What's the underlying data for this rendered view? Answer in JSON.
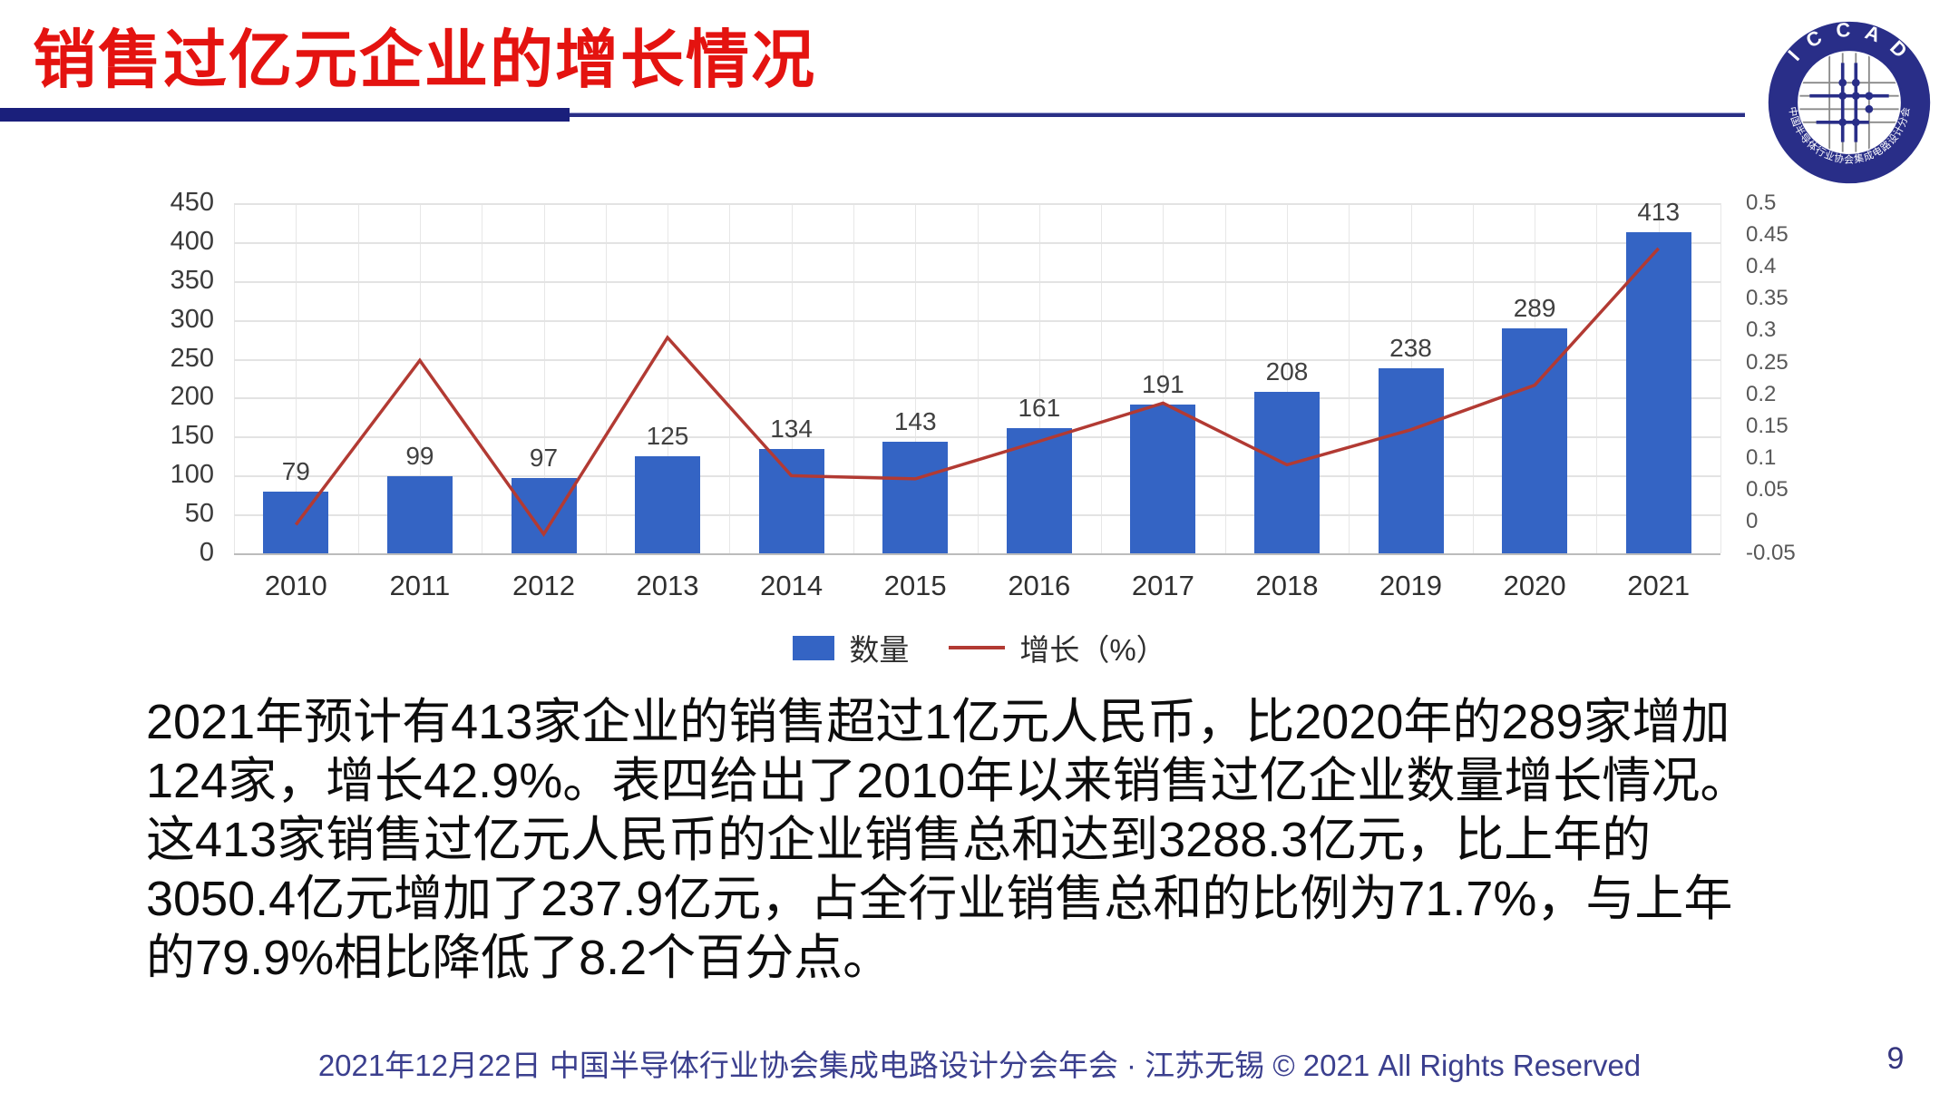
{
  "header": {
    "title": "销售过亿元企业的增长情况"
  },
  "logo": {
    "top_text": "I C C A D",
    "bottom_text": "中国半导体行业协会集成电路设计分会",
    "ring_color": "#292e88"
  },
  "chart_data": {
    "type": "bar",
    "subtype": "combo-bar-line",
    "categories": [
      "2010",
      "2011",
      "2012",
      "2013",
      "2014",
      "2015",
      "2016",
      "2017",
      "2018",
      "2019",
      "2020",
      "2021"
    ],
    "series": [
      {
        "name": "数量",
        "type": "bar",
        "color": "#3464c4",
        "values": [
          79,
          99,
          97,
          125,
          134,
          143,
          161,
          191,
          208,
          238,
          289,
          413
        ]
      },
      {
        "name": "增长（%）",
        "type": "line",
        "color": "#b23a33",
        "values": [
          -0.005,
          0.253,
          -0.02,
          0.289,
          0.072,
          0.067,
          0.126,
          0.186,
          0.089,
          0.144,
          0.214,
          0.429
        ]
      }
    ],
    "left_axis": {
      "min": 0,
      "max": 450,
      "step": 50
    },
    "right_axis": {
      "min": -0.05,
      "max": 0.5,
      "step": 0.05
    },
    "grid": "both",
    "legend_position": "bottom",
    "title": "",
    "xlabel": "",
    "ylabel": ""
  },
  "body": {
    "lines": [
      "2021年预计有413家企业的销售超过1亿元人民币，比2020年的289家增加",
      "124家，增长42.9%。表四给出了2010年以来销售过亿企业数量增长情况。",
      "这413家销售过亿元人民币的企业销售总和达到3288.3亿元，比上年的",
      "3050.4亿元增加了237.9亿元，占全行业销售总和的比例为71.7%，与上年",
      "的79.9%相比降低了8.2个百分点。"
    ]
  },
  "footer": {
    "text": "2021年12月22日 中国半导体行业协会集成电路设计分会年会 · 江苏无锡 © 2021 All Rights Reserved",
    "page": "9"
  }
}
